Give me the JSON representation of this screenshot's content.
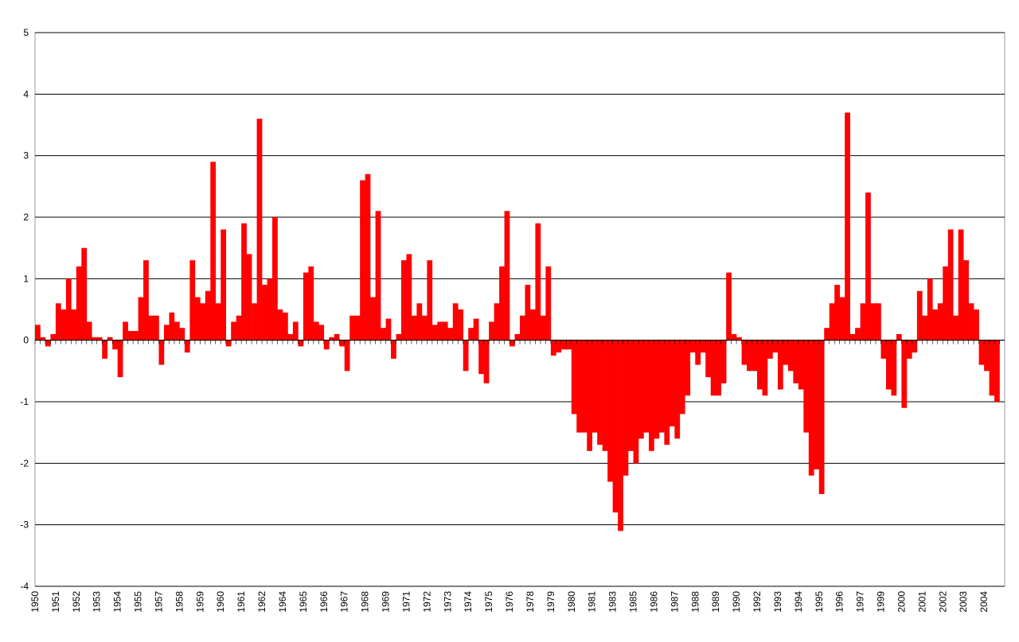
{
  "chart_data": {
    "type": "bar",
    "color": "#ff0000",
    "ylim": [
      -4,
      5
    ],
    "yticks": [
      -4,
      -3,
      -2,
      -1,
      0,
      1,
      2,
      3,
      4,
      5
    ],
    "grid": true,
    "categories": [
      "1950",
      null,
      null,
      null,
      "1951",
      null,
      null,
      null,
      "1952",
      null,
      null,
      null,
      "1953",
      null,
      null,
      null,
      "1954",
      null,
      null,
      null,
      "1955",
      null,
      null,
      null,
      "1957",
      null,
      null,
      null,
      "1958",
      null,
      null,
      null,
      "1959",
      null,
      null,
      null,
      "1960",
      null,
      null,
      null,
      "1961",
      null,
      null,
      null,
      "1962",
      null,
      null,
      null,
      "1964",
      null,
      null,
      null,
      "1965",
      null,
      null,
      null,
      "1966",
      null,
      null,
      null,
      "1967",
      null,
      null,
      null,
      "1968",
      null,
      null,
      null,
      "1969",
      null,
      null,
      null,
      "1971",
      null,
      null,
      null,
      "1972",
      null,
      null,
      null,
      "1973",
      null,
      null,
      null,
      "1974",
      null,
      null,
      null,
      "1975",
      null,
      null,
      null,
      "1976",
      null,
      null,
      null,
      "1978",
      null,
      null,
      null,
      "1979",
      null,
      null,
      null,
      "1980",
      null,
      null,
      null,
      "1981",
      null,
      null,
      null,
      "1983",
      null,
      null,
      null,
      "1985",
      null,
      null,
      null,
      "1986",
      null,
      null,
      null,
      "1987",
      null,
      null,
      null,
      "1988",
      null,
      null,
      null,
      "1989",
      null,
      null,
      null,
      "1990",
      null,
      null,
      null,
      "1992",
      null,
      null,
      null,
      "1993",
      null,
      null,
      null,
      "1994",
      null,
      null,
      null,
      "1995",
      null,
      null,
      null,
      "1996",
      null,
      null,
      null,
      "1997",
      null,
      null,
      null,
      "1999",
      null,
      null,
      null,
      "2000",
      null,
      null,
      null,
      "2001",
      null,
      null,
      null,
      "2002",
      null,
      null,
      null,
      "2003",
      null,
      null,
      null,
      "2004",
      null,
      null,
      null
    ],
    "values": [
      0.25,
      0.05,
      -0.1,
      0.1,
      0.6,
      0.5,
      1.0,
      0.5,
      1.2,
      1.5,
      0.3,
      0.05,
      0.05,
      -0.3,
      0.05,
      -0.15,
      -0.6,
      0.3,
      0.15,
      0.15,
      0.7,
      1.3,
      0.4,
      0.4,
      -0.4,
      0.25,
      0.45,
      0.3,
      0.2,
      -0.2,
      1.3,
      0.7,
      0.6,
      0.8,
      2.9,
      0.6,
      1.8,
      -0.1,
      0.3,
      0.4,
      1.9,
      1.4,
      0.6,
      3.6,
      0.9,
      1.0,
      2.0,
      0.5,
      0.45,
      0.1,
      0.3,
      -0.1,
      1.1,
      1.2,
      0.3,
      0.25,
      -0.15,
      0.05,
      0.1,
      -0.1,
      -0.5,
      0.4,
      0.4,
      2.6,
      2.7,
      0.7,
      2.1,
      0.2,
      0.35,
      -0.3,
      0.1,
      1.3,
      1.4,
      0.4,
      0.6,
      0.4,
      1.3,
      0.25,
      0.3,
      0.3,
      0.2,
      0.6,
      0.5,
      -0.5,
      0.2,
      0.35,
      -0.55,
      -0.7,
      0.3,
      0.6,
      1.2,
      2.1,
      -0.1,
      0.1,
      0.4,
      0.9,
      0.5,
      1.9,
      0.4,
      1.2,
      -0.25,
      -0.2,
      -0.15,
      -0.15,
      -1.2,
      -1.5,
      -1.5,
      -1.8,
      -1.5,
      -1.7,
      -1.8,
      -2.3,
      -2.8,
      -3.1,
      -2.2,
      -1.8,
      -2.0,
      -1.6,
      -1.5,
      -1.8,
      -1.6,
      -1.5,
      -1.7,
      -1.4,
      -1.6,
      -1.2,
      -0.9,
      -0.2,
      -0.4,
      -0.2,
      -0.6,
      -0.9,
      -0.9,
      -0.7,
      1.1,
      0.1,
      0.05,
      -0.4,
      -0.5,
      -0.5,
      -0.8,
      -0.9,
      -0.3,
      -0.2,
      -0.8,
      -0.4,
      -0.5,
      -0.7,
      -0.8,
      -1.5,
      -2.2,
      -2.1,
      -2.5,
      0.2,
      0.6,
      0.9,
      0.7,
      3.7,
      0.1,
      0.2,
      0.6,
      2.4,
      0.6,
      0.6,
      -0.3,
      -0.8,
      -0.9,
      0.1,
      -1.1,
      -0.3,
      -0.2,
      0.8,
      0.4,
      1.0,
      0.5,
      0.6,
      1.2,
      1.8,
      0.4,
      1.8,
      1.3,
      0.6,
      0.5,
      -0.4,
      -0.5,
      -0.9,
      -1.0,
      null
    ]
  }
}
